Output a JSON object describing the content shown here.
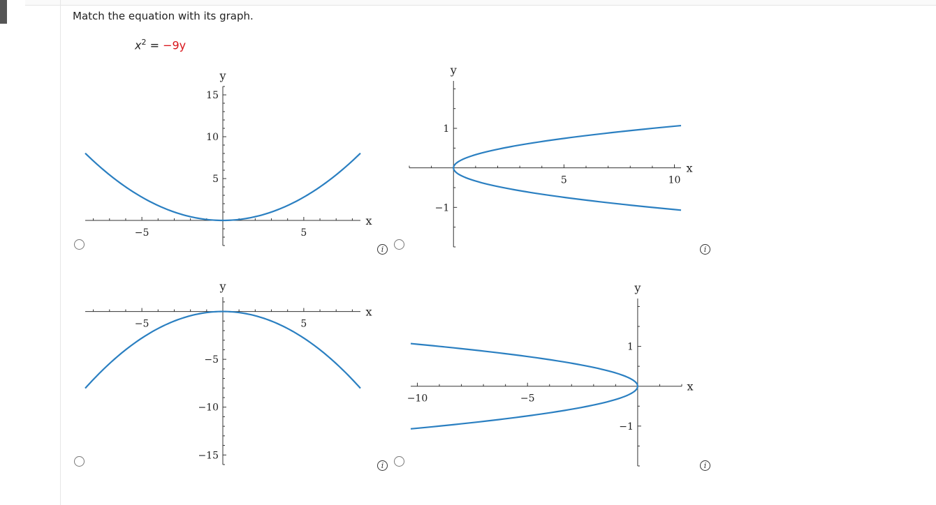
{
  "prompt": "Match the equation with its graph.",
  "equation": {
    "lhs_base": "x",
    "lhs_exp": "2",
    "eq": "=",
    "rhs": "−9y"
  },
  "colors": {
    "curve": "#2a7fc1",
    "rhs": "#d8141a"
  },
  "info_symbol": "i",
  "chart_data": [
    {
      "type": "line",
      "equation_shape": "x^2 = 9y",
      "xlabel": "x",
      "ylabel": "y",
      "xlim": [
        -8.5,
        8.5
      ],
      "ylim": [
        -3,
        16
      ],
      "x_ticks": [
        {
          "v": -5,
          "label": "−5"
        },
        {
          "v": 5,
          "label": "5"
        }
      ],
      "y_ticks": [
        {
          "v": 5,
          "label": "5"
        },
        {
          "v": 10,
          "label": "10"
        },
        {
          "v": 15,
          "label": "15"
        }
      ],
      "curve": "parabola_up",
      "k": 9,
      "domain": [
        -8.5,
        8.5
      ]
    },
    {
      "type": "line",
      "equation_shape": "y^2 = x/9",
      "xlabel": "x",
      "ylabel": "y",
      "xlim": [
        -2,
        10.3
      ],
      "ylim": [
        -2,
        2.2
      ],
      "x_ticks": [
        {
          "v": 5,
          "label": "5"
        },
        {
          "v": 10,
          "label": "10"
        }
      ],
      "y_ticks": [
        {
          "v": 1,
          "label": "1"
        },
        {
          "v": -1,
          "label": "−1"
        }
      ],
      "curve": "parabola_right",
      "k": 9,
      "domain": [
        0,
        10.3
      ]
    },
    {
      "type": "line",
      "equation_shape": "x^2 = -9y",
      "xlabel": "x",
      "ylabel": "y",
      "xlim": [
        -8.5,
        8.5
      ],
      "ylim": [
        -16,
        1.5
      ],
      "x_ticks": [
        {
          "v": -5,
          "label": "−5"
        },
        {
          "v": 5,
          "label": "5"
        }
      ],
      "y_ticks": [
        {
          "v": -5,
          "label": "−5"
        },
        {
          "v": -10,
          "label": "−10"
        },
        {
          "v": -15,
          "label": "−15"
        }
      ],
      "curve": "parabola_down",
      "k": 9,
      "domain": [
        -8.5,
        8.5
      ]
    },
    {
      "type": "line",
      "equation_shape": "y^2 = -x/9",
      "xlabel": "x",
      "ylabel": "y",
      "xlim": [
        -10.3,
        2
      ],
      "ylim": [
        -2,
        2.2
      ],
      "x_ticks": [
        {
          "v": -10,
          "label": "−10"
        },
        {
          "v": -5,
          "label": "−5"
        }
      ],
      "y_ticks": [
        {
          "v": 1,
          "label": "1"
        },
        {
          "v": -1,
          "label": "−1"
        }
      ],
      "curve": "parabola_left",
      "k": 9,
      "domain": [
        -10.3,
        0
      ]
    }
  ]
}
